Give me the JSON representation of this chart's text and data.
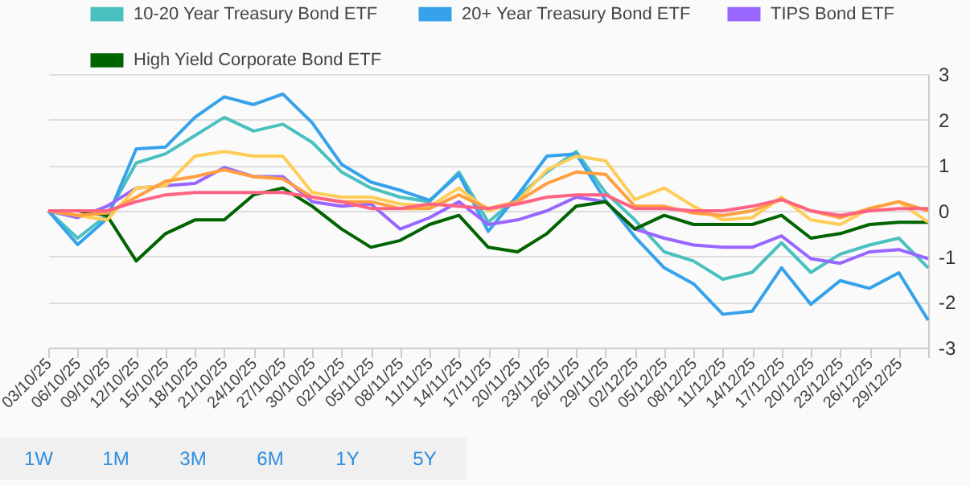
{
  "chart_data": {
    "type": "line",
    "categories": [
      "03/10/25",
      "06/10/25",
      "09/10/25",
      "12/10/25",
      "15/10/25",
      "18/10/25",
      "21/10/25",
      "24/10/25",
      "27/10/25",
      "30/10/25",
      "02/11/25",
      "05/11/25",
      "08/11/25",
      "11/11/25",
      "14/11/25",
      "17/11/25",
      "20/11/25",
      "23/11/25",
      "26/11/25",
      "29/11/25",
      "02/12/25",
      "05/12/25",
      "08/12/25",
      "11/12/25",
      "14/12/25",
      "17/12/25",
      "20/12/25",
      "23/12/25",
      "26/12/25",
      "29/12/25",
      null
    ],
    "series": [
      {
        "name": "10-20 Year Treasury Bond ETF",
        "color": "#4bc0c0",
        "values": [
          0,
          -0.6,
          -0.1,
          1.05,
          1.25,
          1.65,
          2.05,
          1.75,
          1.9,
          1.5,
          0.85,
          0.5,
          0.3,
          0.2,
          0.85,
          -0.25,
          0.3,
          0.85,
          1.3,
          0.4,
          -0.2,
          -0.9,
          -1.1,
          -1.5,
          -1.35,
          -0.7,
          -1.35,
          -0.95,
          -0.75,
          -0.6,
          -1.25
        ]
      },
      {
        "name": "20+ Year Treasury Bond ETF",
        "color": "#36a2eb",
        "values": [
          0,
          -0.74,
          -0.17,
          1.36,
          1.4,
          2.05,
          2.5,
          2.33,
          2.56,
          1.93,
          1.02,
          0.63,
          0.45,
          0.23,
          0.8,
          -0.45,
          0.34,
          1.2,
          1.25,
          0.23,
          -0.57,
          -1.25,
          -1.6,
          -2.27,
          -2.2,
          -1.25,
          -2.05,
          -1.53,
          -1.7,
          -1.36,
          -2.4
        ]
      },
      {
        "name": "TIPS Bond ETF",
        "color": "#9966ff",
        "values": [
          0,
          -0.15,
          0.1,
          0.5,
          0.55,
          0.6,
          0.95,
          0.75,
          0.75,
          0.2,
          0.1,
          0.15,
          -0.4,
          -0.15,
          0.2,
          -0.3,
          -0.2,
          0,
          0.3,
          0.2,
          -0.4,
          -0.6,
          -0.75,
          -0.8,
          -0.8,
          -0.55,
          -1.05,
          -1.15,
          -0.9,
          -0.85,
          -1.05
        ]
      },
      {
        "name": "High Yield Corporate Bond ETF",
        "color": "#006400",
        "values": [
          0,
          0,
          -0.1,
          -1.1,
          -0.5,
          -0.2,
          -0.2,
          0.35,
          0.5,
          0.1,
          -0.4,
          -0.8,
          -0.65,
          -0.3,
          -0.1,
          -0.8,
          -0.9,
          -0.5,
          0.1,
          0.2,
          -0.4,
          -0.1,
          -0.3,
          -0.3,
          -0.3,
          -0.1,
          -0.6,
          -0.5,
          -0.3,
          -0.25,
          -0.25
        ]
      },
      {
        "color": "#ffcd56",
        "values": [
          0,
          -0.1,
          -0.2,
          0.5,
          0.55,
          1.2,
          1.3,
          1.2,
          1.2,
          0.4,
          0.3,
          0.3,
          0.15,
          0.1,
          0.5,
          0,
          0.2,
          0.9,
          1.2,
          1.1,
          0.25,
          0.5,
          0.1,
          -0.2,
          -0.15,
          0.3,
          -0.2,
          -0.3,
          0.05,
          0.2,
          -0.25
        ]
      },
      {
        "color": "#ff9f40",
        "values": [
          0,
          -0.1,
          -0.05,
          0.3,
          0.65,
          0.75,
          0.9,
          0.75,
          0.7,
          0.3,
          0.2,
          0.2,
          0.05,
          0.05,
          0.35,
          0.05,
          0.2,
          0.6,
          0.85,
          0.8,
          0.1,
          0.1,
          -0.05,
          -0.1,
          0,
          0.25,
          0,
          -0.15,
          0.05,
          0.2,
          0
        ]
      },
      {
        "color": "#ff6384",
        "values": [
          0,
          0,
          0,
          0.2,
          0.35,
          0.4,
          0.4,
          0.4,
          0.4,
          0.3,
          0.2,
          0.05,
          0.05,
          0.15,
          0.1,
          0.05,
          0.15,
          0.3,
          0.35,
          0.35,
          0.05,
          0.05,
          0,
          0,
          0.1,
          0.25,
          0,
          -0.1,
          0,
          0.05,
          0.05
        ]
      }
    ],
    "ylim": [
      -3,
      3
    ],
    "yticks": [
      -3,
      -2,
      -1,
      0,
      1,
      2,
      3
    ],
    "grid": "y",
    "legend": "top",
    "marker": "none",
    "annotations": [
      "1W",
      "1M",
      "3M",
      "6M",
      "1Y",
      "5Y"
    ]
  }
}
